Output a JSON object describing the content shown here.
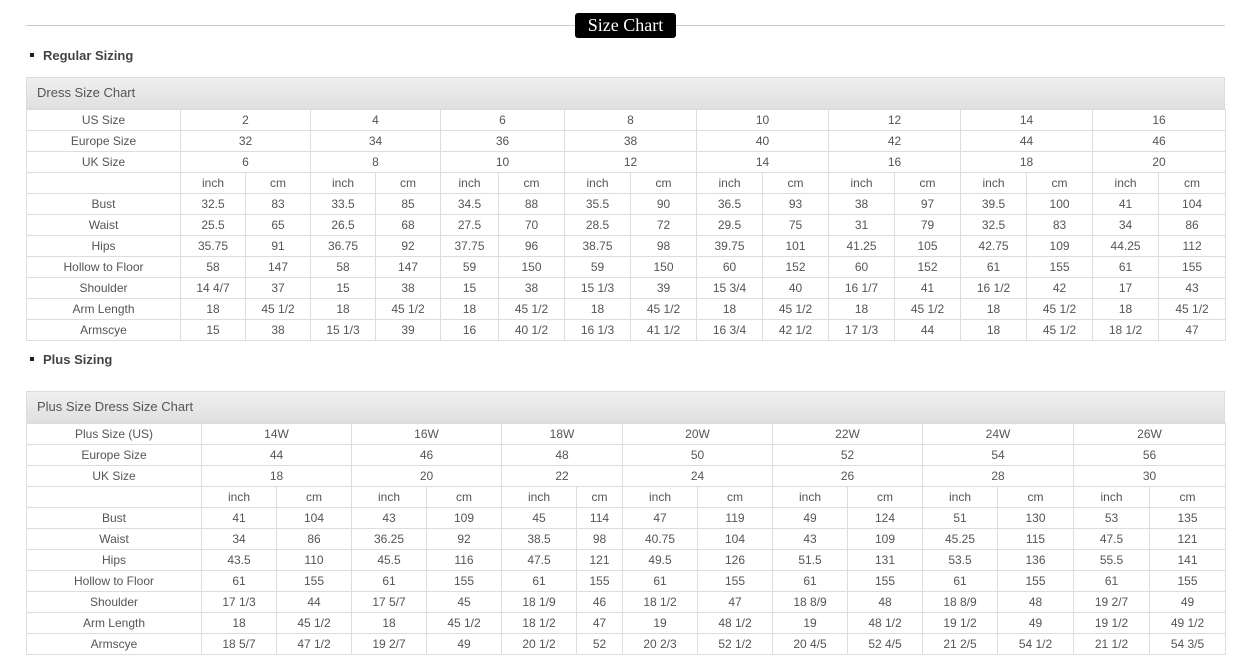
{
  "title": "Size Chart",
  "regular": {
    "section": "Regular Sizing",
    "table_title": "Dress Size Chart",
    "size_rows": [
      {
        "label": "US Size",
        "values": [
          "2",
          "4",
          "6",
          "8",
          "10",
          "12",
          "14",
          "16"
        ]
      },
      {
        "label": "Europe Size",
        "values": [
          "32",
          "34",
          "36",
          "38",
          "40",
          "42",
          "44",
          "46"
        ]
      },
      {
        "label": "UK Size",
        "values": [
          "6",
          "8",
          "10",
          "12",
          "14",
          "16",
          "18",
          "20"
        ]
      }
    ],
    "units": [
      "inch",
      "cm"
    ],
    "measure_rows": [
      {
        "label": "Bust",
        "values": [
          "32.5",
          "83",
          "33.5",
          "85",
          "34.5",
          "88",
          "35.5",
          "90",
          "36.5",
          "93",
          "38",
          "97",
          "39.5",
          "100",
          "41",
          "104"
        ]
      },
      {
        "label": "Waist",
        "values": [
          "25.5",
          "65",
          "26.5",
          "68",
          "27.5",
          "70",
          "28.5",
          "72",
          "29.5",
          "75",
          "31",
          "79",
          "32.5",
          "83",
          "34",
          "86"
        ]
      },
      {
        "label": "Hips",
        "values": [
          "35.75",
          "91",
          "36.75",
          "92",
          "37.75",
          "96",
          "38.75",
          "98",
          "39.75",
          "101",
          "41.25",
          "105",
          "42.75",
          "109",
          "44.25",
          "112"
        ]
      },
      {
        "label": "Hollow to Floor",
        "values": [
          "58",
          "147",
          "58",
          "147",
          "59",
          "150",
          "59",
          "150",
          "60",
          "152",
          "60",
          "152",
          "61",
          "155",
          "61",
          "155"
        ]
      },
      {
        "label": "Shoulder",
        "values": [
          "14 4/7",
          "37",
          "15",
          "38",
          "15",
          "38",
          "15 1/3",
          "39",
          "15 3/4",
          "40",
          "16 1/7",
          "41",
          "16 1/2",
          "42",
          "17",
          "43"
        ]
      },
      {
        "label": "Arm Length",
        "values": [
          "18",
          "45 1/2",
          "18",
          "45 1/2",
          "18",
          "45 1/2",
          "18",
          "45 1/2",
          "18",
          "45 1/2",
          "18",
          "45 1/2",
          "18",
          "45 1/2",
          "18",
          "45 1/2"
        ]
      },
      {
        "label": "Armscye",
        "values": [
          "15",
          "38",
          "15 1/3",
          "39",
          "16",
          "40 1/2",
          "16 1/3",
          "41 1/2",
          "16 3/4",
          "42 1/2",
          "17 1/3",
          "44",
          "18",
          "45 1/2",
          "18 1/2",
          "47"
        ]
      }
    ]
  },
  "plus": {
    "section": "Plus Sizing",
    "table_title": "Plus Size Dress Size Chart",
    "size_rows": [
      {
        "label": "Plus Size (US)",
        "values": [
          "14W",
          "16W",
          "18W",
          "20W",
          "22W",
          "24W",
          "26W"
        ]
      },
      {
        "label": "Europe Size",
        "values": [
          "44",
          "46",
          "48",
          "50",
          "52",
          "54",
          "56"
        ]
      },
      {
        "label": "UK Size",
        "values": [
          "18",
          "20",
          "22",
          "24",
          "26",
          "28",
          "30"
        ]
      }
    ],
    "units": [
      "inch",
      "cm"
    ],
    "measure_rows": [
      {
        "label": "Bust",
        "values": [
          "41",
          "104",
          "43",
          "109",
          "45",
          "114",
          "47",
          "119",
          "49",
          "124",
          "51",
          "130",
          "53",
          "135"
        ]
      },
      {
        "label": "Waist",
        "values": [
          "34",
          "86",
          "36.25",
          "92",
          "38.5",
          "98",
          "40.75",
          "104",
          "43",
          "109",
          "45.25",
          "115",
          "47.5",
          "121"
        ]
      },
      {
        "label": "Hips",
        "values": [
          "43.5",
          "110",
          "45.5",
          "116",
          "47.5",
          "121",
          "49.5",
          "126",
          "51.5",
          "131",
          "53.5",
          "136",
          "55.5",
          "141"
        ]
      },
      {
        "label": "Hollow to Floor",
        "values": [
          "61",
          "155",
          "61",
          "155",
          "61",
          "155",
          "61",
          "155",
          "61",
          "155",
          "61",
          "155",
          "61",
          "155"
        ]
      },
      {
        "label": "Shoulder",
        "values": [
          "17 1/3",
          "44",
          "17 5/7",
          "45",
          "18 1/9",
          "46",
          "18 1/2",
          "47",
          "18 8/9",
          "48",
          "18 8/9",
          "48",
          "19 2/7",
          "49"
        ]
      },
      {
        "label": "Arm Length",
        "values": [
          "18",
          "45 1/2",
          "18",
          "45 1/2",
          "18 1/2",
          "47",
          "19",
          "48 1/2",
          "19",
          "48 1/2",
          "19 1/2",
          "49",
          "19 1/2",
          "49 1/2"
        ]
      },
      {
        "label": "Armscye",
        "values": [
          "18 5/7",
          "47 1/2",
          "19 2/7",
          "49",
          "20 1/2",
          "52",
          "20 2/3",
          "52 1/2",
          "20 4/5",
          "52 4/5",
          "21 2/5",
          "54 1/2",
          "21 1/2",
          "54 3/5"
        ]
      }
    ]
  }
}
